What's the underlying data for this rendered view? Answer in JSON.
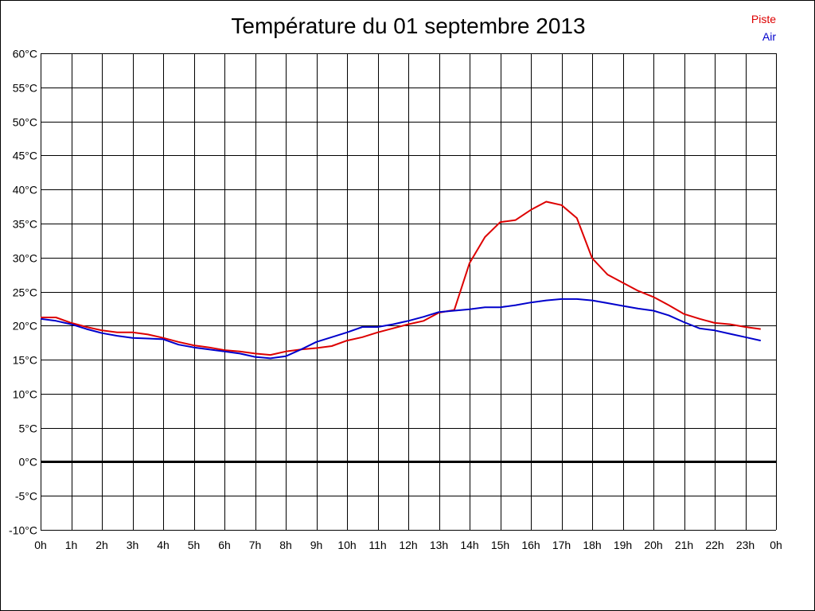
{
  "chart_data": {
    "type": "line",
    "title": "Température du 01 septembre 2013",
    "ylim": [
      -10,
      60
    ],
    "xlim": [
      0,
      24
    ],
    "grid": true,
    "legend_position": "top-right",
    "y_ticks": [
      "60°C",
      "55°C",
      "50°C",
      "45°C",
      "40°C",
      "35°C",
      "30°C",
      "25°C",
      "20°C",
      "15°C",
      "10°C",
      "5°C",
      "0°C",
      "-5°C",
      "-10°C"
    ],
    "y_tick_values": [
      60,
      55,
      50,
      45,
      40,
      35,
      30,
      25,
      20,
      15,
      10,
      5,
      0,
      -5,
      -10
    ],
    "x_ticks": [
      "0h",
      "1h",
      "2h",
      "3h",
      "4h",
      "5h",
      "6h",
      "7h",
      "8h",
      "9h",
      "10h",
      "11h",
      "12h",
      "13h",
      "14h",
      "15h",
      "16h",
      "17h",
      "18h",
      "19h",
      "20h",
      "21h",
      "22h",
      "23h",
      "0h"
    ],
    "x": [
      0,
      0.5,
      1,
      1.5,
      2,
      2.5,
      3,
      3.5,
      4,
      4.5,
      5,
      5.5,
      6,
      6.5,
      7,
      7.5,
      8,
      8.5,
      9,
      9.5,
      10,
      10.5,
      11,
      11.5,
      12,
      12.5,
      13,
      13.5,
      14,
      14.5,
      15,
      15.5,
      16,
      16.5,
      17,
      17.5,
      18,
      18.5,
      19,
      19.5,
      20,
      20.5,
      21,
      21.5,
      22,
      22.5,
      23,
      23.5
    ],
    "series": [
      {
        "name": "Piste",
        "color": "#dd0000",
        "values": [
          21.2,
          21.2,
          20.4,
          19.8,
          19.3,
          19.0,
          19.0,
          18.7,
          18.2,
          17.6,
          17.1,
          16.8,
          16.4,
          16.2,
          15.9,
          15.7,
          16.2,
          16.5,
          16.7,
          17.0,
          17.8,
          18.3,
          19.0,
          19.6,
          20.2,
          20.7,
          21.9,
          22.3,
          29.2,
          33.0,
          35.2,
          35.5,
          37.0,
          38.2,
          37.7,
          35.8,
          29.9,
          27.5,
          26.3,
          25.1,
          24.2,
          23.0,
          21.7,
          21.0,
          20.4,
          20.2,
          19.8,
          19.5
        ]
      },
      {
        "name": "Air",
        "color": "#0000cc",
        "values": [
          21.0,
          20.7,
          20.2,
          19.5,
          18.9,
          18.5,
          18.2,
          18.1,
          18.0,
          17.2,
          16.8,
          16.5,
          16.2,
          15.9,
          15.4,
          15.2,
          15.5,
          16.5,
          17.6,
          18.3,
          19.0,
          19.8,
          19.8,
          20.2,
          20.7,
          21.3,
          22.0,
          22.2,
          22.4,
          22.7,
          22.7,
          23.0,
          23.4,
          23.7,
          23.9,
          23.9,
          23.7,
          23.3,
          22.9,
          22.5,
          22.2,
          21.5,
          20.5,
          19.6,
          19.3,
          18.8,
          18.3,
          17.8
        ]
      }
    ],
    "zero_line": 0
  }
}
